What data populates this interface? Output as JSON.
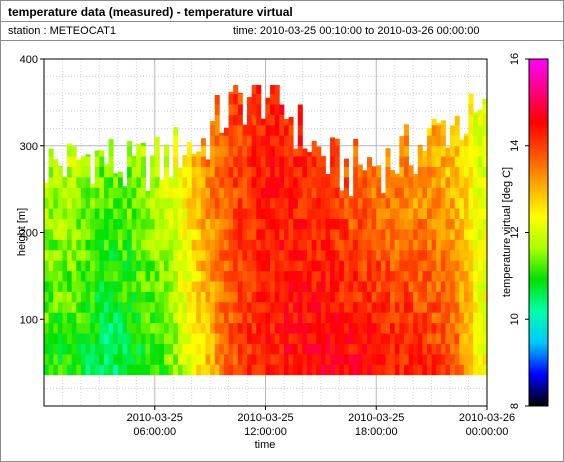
{
  "header": {
    "title": "temperature data (measured) - temperature virtual",
    "station": "station : METEOCAT1",
    "time_range": "time: 2010-03-25 00:10:00 to 2010-03-26 00:00:00"
  },
  "chart_data": {
    "type": "heatmap",
    "xlabel": "time",
    "ylabel": "height [m]",
    "colorbar_label": "temperature virtual [deg C]",
    "xlim_hours": [
      0,
      24
    ],
    "ylim": [
      0,
      400
    ],
    "x_ticks": [
      {
        "hour": 6,
        "line1": "2010-03-25",
        "line2": "06:00:00"
      },
      {
        "hour": 12,
        "line1": "2010-03-25",
        "line2": "12:00:00"
      },
      {
        "hour": 18,
        "line1": "2010-03-25",
        "line2": "18:00:00"
      },
      {
        "hour": 24,
        "line1": "2010-03-26",
        "line2": "00:00:00"
      }
    ],
    "y_ticks": [
      100,
      200,
      300,
      400
    ],
    "colorbar_range": [
      8,
      16
    ],
    "colorbar_ticks": [
      8,
      10,
      12,
      14,
      16
    ],
    "grid": true,
    "colormap": [
      "#000000",
      "#0000ff",
      "#00c8ff",
      "#00ffaa",
      "#00e000",
      "#aaff00",
      "#ffff00",
      "#ffaa00",
      "#ff5000",
      "#ff0000",
      "#ff0080",
      "#ff00ff"
    ],
    "data_bottom_height": 36,
    "hourly_top_height": [
      280,
      280,
      290,
      285,
      270,
      280,
      280,
      300,
      300,
      330,
      350,
      360,
      360,
      330,
      300,
      280,
      270,
      280,
      280,
      290,
      300,
      320,
      330,
      330
    ],
    "hourly_temperature_low": [
      11.0,
      11.0,
      10.6,
      10.4,
      10.6,
      10.9,
      11.2,
      11.8,
      12.6,
      13.3,
      13.9,
      14.2,
      14.4,
      14.5,
      14.6,
      14.6,
      14.6,
      14.5,
      14.4,
      14.3,
      14.2,
      14.0,
      13.6,
      12.3
    ],
    "hourly_temperature_high": [
      11.8,
      11.9,
      11.6,
      11.4,
      11.5,
      11.7,
      12.0,
      12.5,
      13.2,
      13.8,
      14.0,
      14.2,
      14.3,
      14.2,
      14.0,
      13.9,
      13.7,
      13.5,
      13.3,
      13.2,
      13.0,
      12.9,
      12.7,
      12.0
    ]
  }
}
